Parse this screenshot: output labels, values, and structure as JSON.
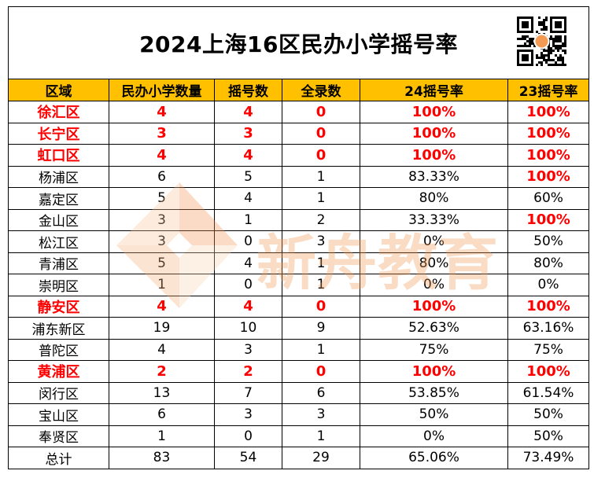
{
  "colors": {
    "header_background": "#ffc000",
    "highlight_text": "#ff0000",
    "watermark": "#f39a55"
  },
  "icons": {
    "qr_code": "qr-code-icon",
    "watermark_logo": "watermark-logo-icon"
  },
  "watermark": {
    "text": "新舟教育"
  },
  "chart_data": {
    "type": "table",
    "title": "2024上海16区民办小学摇号率",
    "columns": [
      "区域",
      "民办小学数量",
      "摇号数",
      "全录数",
      "24摇号率",
      "23摇号率"
    ],
    "rows": [
      {
        "cells": [
          "徐汇区",
          4,
          4,
          0,
          "100%",
          "100%"
        ],
        "highlighted_columns": [
          0,
          1,
          2,
          3,
          4,
          5
        ]
      },
      {
        "cells": [
          "长宁区",
          3,
          3,
          0,
          "100%",
          "100%"
        ],
        "highlighted_columns": [
          0,
          1,
          2,
          3,
          4,
          5
        ]
      },
      {
        "cells": [
          "虹口区",
          4,
          4,
          0,
          "100%",
          "100%"
        ],
        "highlighted_columns": [
          0,
          1,
          2,
          3,
          4,
          5
        ]
      },
      {
        "cells": [
          "杨浦区",
          6,
          5,
          1,
          "83.33%",
          "100%"
        ],
        "highlighted_columns": [
          5
        ]
      },
      {
        "cells": [
          "嘉定区",
          5,
          4,
          1,
          "80%",
          "60%"
        ],
        "highlighted_columns": []
      },
      {
        "cells": [
          "金山区",
          3,
          1,
          2,
          "33.33%",
          "100%"
        ],
        "highlighted_columns": [
          5
        ]
      },
      {
        "cells": [
          "松江区",
          3,
          0,
          3,
          "0%",
          "50%"
        ],
        "highlighted_columns": []
      },
      {
        "cells": [
          "青浦区",
          5,
          4,
          1,
          "80%",
          "80%"
        ],
        "highlighted_columns": []
      },
      {
        "cells": [
          "崇明区",
          1,
          0,
          1,
          "0%",
          "0%"
        ],
        "highlighted_columns": []
      },
      {
        "cells": [
          "静安区",
          4,
          4,
          0,
          "100%",
          "100%"
        ],
        "highlighted_columns": [
          0,
          1,
          2,
          3,
          4,
          5
        ]
      },
      {
        "cells": [
          "浦东新区",
          19,
          10,
          9,
          "52.63%",
          "63.16%"
        ],
        "highlighted_columns": []
      },
      {
        "cells": [
          "普陀区",
          4,
          3,
          1,
          "75%",
          "75%"
        ],
        "highlighted_columns": []
      },
      {
        "cells": [
          "黄浦区",
          2,
          2,
          0,
          "100%",
          "100%"
        ],
        "highlighted_columns": [
          0,
          1,
          2,
          3,
          4,
          5
        ]
      },
      {
        "cells": [
          "闵行区",
          13,
          7,
          6,
          "53.85%",
          "61.54%"
        ],
        "highlighted_columns": []
      },
      {
        "cells": [
          "宝山区",
          6,
          3,
          3,
          "50%",
          "50%"
        ],
        "highlighted_columns": []
      },
      {
        "cells": [
          "奉贤区",
          1,
          0,
          1,
          "0%",
          "50%"
        ],
        "highlighted_columns": []
      },
      {
        "cells": [
          "总计",
          83,
          54,
          29,
          "65.06%",
          "73.49%"
        ],
        "highlighted_columns": []
      }
    ]
  }
}
